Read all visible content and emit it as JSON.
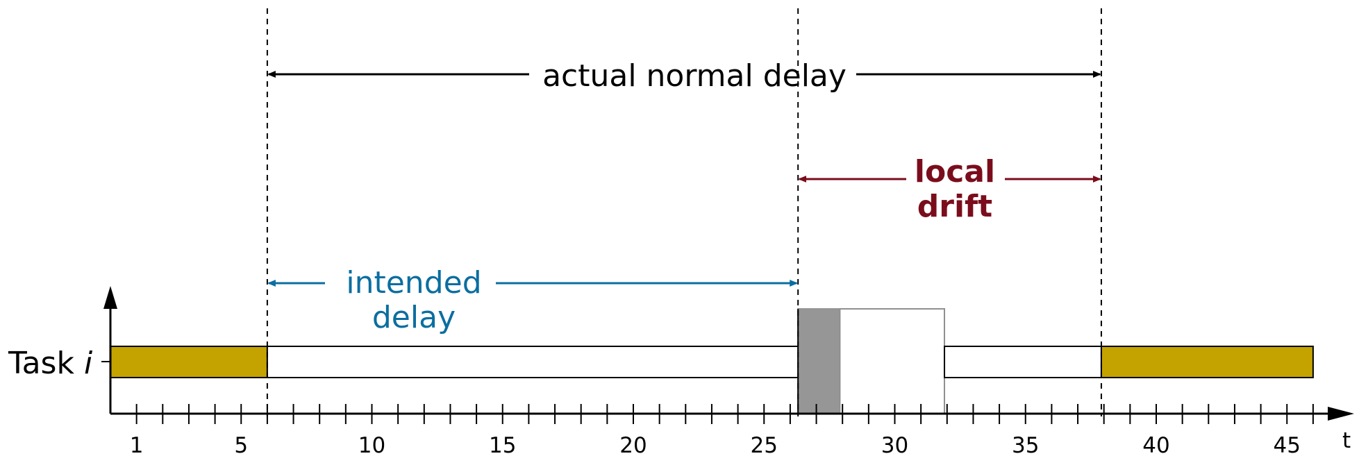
{
  "task_label": {
    "prefix": "Task ",
    "var": "i"
  },
  "axis": {
    "t_label": "t"
  },
  "ticks": {
    "min": 1,
    "max": 46,
    "labels": [
      1,
      5,
      10,
      15,
      20,
      25,
      30,
      35,
      40,
      45
    ]
  },
  "labels": {
    "actual_normal_delay": "actual normal delay",
    "intended_line1": "intended",
    "intended_line2": "delay",
    "drift_line1": "local",
    "drift_line2": "drift"
  },
  "markers": {
    "t_start": 6,
    "t_intended_end": 26.3,
    "t_actual_end": 37.9
  },
  "segments": [
    {
      "kind": "busy",
      "start": 0,
      "end": 6
    },
    {
      "kind": "idle",
      "start": 6,
      "end": 26.3
    },
    {
      "kind": "gray",
      "start": 26.3,
      "end": 27.9
    },
    {
      "kind": "raised",
      "start": 27.9,
      "end": 31.9
    },
    {
      "kind": "idle",
      "start": 31.9,
      "end": 37.9
    },
    {
      "kind": "busy",
      "start": 37.9,
      "end": 46
    }
  ],
  "colors": {
    "busy": "#c4a300",
    "gray": "#969696",
    "intended": "#0b6ea0",
    "drift": "#7a0d1c",
    "black": "#000000"
  }
}
